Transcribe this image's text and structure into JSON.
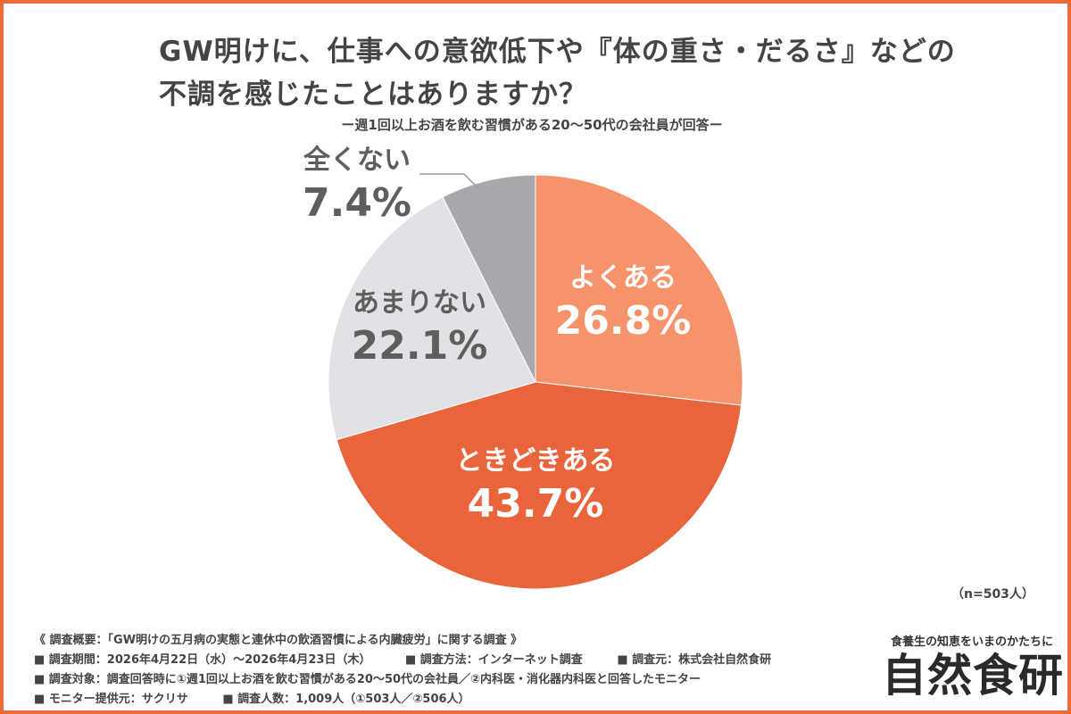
{
  "title_lines": [
    "GW明けに、仕事への意欲低下や『体の重さ・だるさ』などの",
    "不調を感じたことはありますか？"
  ],
  "subtitle": "ー週1回以上お酒を飲む習慣がある20〜50代の会社員が回答ー",
  "sample_size": "（n=503人）",
  "chart_data": {
    "type": "pie",
    "title": "GW明けに、仕事への意欲低下や『体の重さ・だるさ』などの不調を感じたことはありますか？",
    "subtitle": "ー週1回以上お酒を飲む習慣がある20〜50代の会社員が回答ー",
    "start_angle_deg": 0,
    "direction": "clockwise",
    "slices": [
      {
        "label": "よくある",
        "value": 26.8,
        "display": "26.8%",
        "color": "#f6936a"
      },
      {
        "label": "ときどきある",
        "value": 43.7,
        "display": "43.7%",
        "color": "#e9643a"
      },
      {
        "label": "あまりない",
        "value": 22.1,
        "display": "22.1%",
        "color": "#e3e1e6"
      },
      {
        "label": "全くない",
        "value": 7.4,
        "display": "7.4%",
        "color": "#a8a8ac"
      }
    ]
  },
  "survey": {
    "heading": "《 調査概要：「GW明けの五月病の実態と連休中の飲酒習慣による内臓疲労」に関する調査 》",
    "period": "■ 調査期間：2026年4月22日（水）〜2026年4月23日（木）",
    "method": "■ 調査方法：インターネット調査",
    "source": "■ 調査元：株式会社自然食研",
    "target": "■ 調査対象：調査回答時に①週1回以上お酒を飲む習慣がある20〜50代の会社員／②内科医・消化器内科医と回答したモニター",
    "monitor": "■ モニター提供元：サクリサ",
    "count": "■ 調査人数：1,009人（①503人／②506人）"
  },
  "brand": {
    "tagline": "食養生の知恵をいまのかたちに",
    "logo": "自然食研"
  }
}
